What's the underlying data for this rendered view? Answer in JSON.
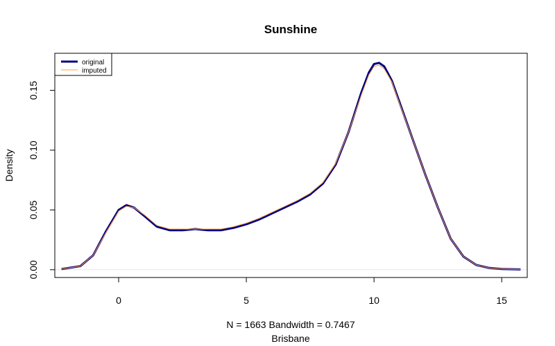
{
  "chart_data": {
    "type": "line",
    "title": "Sunshine",
    "xlabel": "N = 1663   Bandwidth = 0.7467",
    "sublabel": "Brisbane",
    "ylabel": "Density",
    "xlim": [
      -2.5,
      16.0
    ],
    "ylim": [
      -0.0065,
      0.181
    ],
    "xticks": [
      0,
      5,
      10,
      15
    ],
    "yticks": [
      0.0,
      0.05,
      0.1,
      0.15
    ],
    "xtick_labels": [
      "0",
      "5",
      "10",
      "15"
    ],
    "ytick_labels": [
      "0.00",
      "0.05",
      "0.10",
      "0.15"
    ],
    "grid": false,
    "legend_position": "top-left",
    "series": [
      {
        "name": "original",
        "color": "#00007f",
        "x": [
          -2.24,
          -1.5,
          -1.0,
          -0.5,
          0.0,
          0.3,
          0.6,
          1.0,
          1.5,
          2.0,
          2.5,
          3.0,
          3.5,
          4.0,
          4.5,
          5.0,
          5.5,
          6.0,
          6.5,
          7.0,
          7.5,
          8.0,
          8.5,
          9.0,
          9.5,
          9.8,
          10.0,
          10.2,
          10.4,
          10.7,
          11.0,
          11.5,
          12.0,
          12.5,
          13.0,
          13.5,
          14.0,
          14.5,
          15.0,
          15.74
        ],
        "y": [
          0.0005,
          0.003,
          0.012,
          0.032,
          0.05,
          0.054,
          0.052,
          0.045,
          0.036,
          0.033,
          0.033,
          0.034,
          0.033,
          0.033,
          0.035,
          0.038,
          0.042,
          0.047,
          0.052,
          0.057,
          0.063,
          0.072,
          0.088,
          0.115,
          0.148,
          0.165,
          0.172,
          0.173,
          0.17,
          0.158,
          0.14,
          0.11,
          0.08,
          0.052,
          0.026,
          0.011,
          0.004,
          0.0015,
          0.0006,
          0.0002
        ]
      },
      {
        "name": "imputed",
        "color": "#ff9f3f",
        "x": [
          -2.24,
          -1.5,
          -1.0,
          -0.5,
          0.0,
          0.3,
          0.6,
          1.0,
          1.5,
          2.0,
          2.5,
          3.0,
          3.5,
          4.0,
          4.5,
          5.0,
          5.5,
          6.0,
          6.5,
          7.0,
          7.5,
          8.0,
          8.5,
          9.0,
          9.5,
          9.8,
          10.0,
          10.2,
          10.4,
          10.7,
          11.0,
          11.5,
          12.0,
          12.5,
          13.0,
          13.5,
          14.0,
          14.5,
          15.0,
          15.74
        ],
        "y": [
          0.0005,
          0.003,
          0.012,
          0.031,
          0.049,
          0.053,
          0.052,
          0.046,
          0.037,
          0.034,
          0.034,
          0.034,
          0.034,
          0.034,
          0.036,
          0.039,
          0.043,
          0.048,
          0.053,
          0.058,
          0.064,
          0.073,
          0.089,
          0.115,
          0.146,
          0.163,
          0.17,
          0.171,
          0.168,
          0.157,
          0.139,
          0.11,
          0.08,
          0.052,
          0.026,
          0.011,
          0.004,
          0.0015,
          0.0006,
          0.0002
        ]
      }
    ]
  }
}
